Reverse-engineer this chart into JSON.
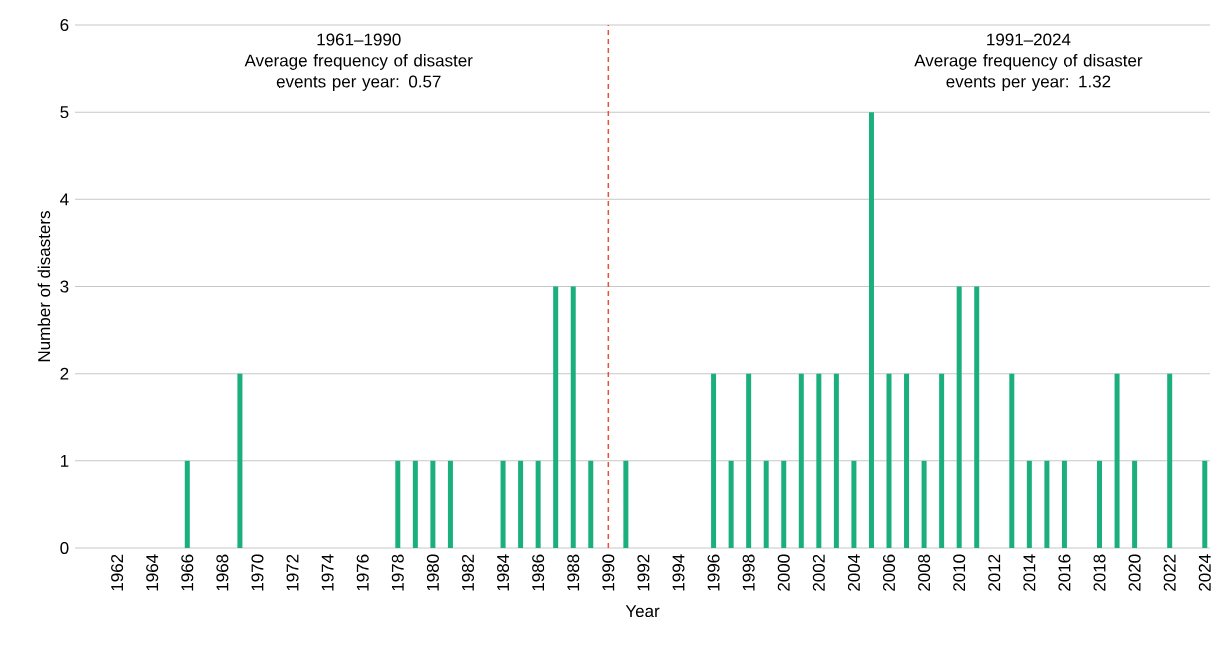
{
  "chart_data": {
    "type": "bar",
    "xlabel": "Year",
    "ylabel": "Number of disasters",
    "x": [
      1966,
      1969,
      1978,
      1979,
      1980,
      1981,
      1984,
      1985,
      1986,
      1987,
      1988,
      1989,
      1991,
      1996,
      1997,
      1998,
      1999,
      2000,
      2001,
      2002,
      2003,
      2004,
      2005,
      2006,
      2007,
      2008,
      2009,
      2010,
      2011,
      2013,
      2014,
      2015,
      2016,
      2018,
      2019,
      2020,
      2022,
      2024
    ],
    "values": [
      1,
      2,
      1,
      1,
      1,
      1,
      1,
      1,
      1,
      3,
      3,
      1,
      1,
      2,
      1,
      2,
      1,
      1,
      2,
      2,
      2,
      1,
      5,
      2,
      2,
      1,
      2,
      3,
      3,
      2,
      1,
      1,
      1,
      1,
      2,
      1,
      2,
      1
    ],
    "color": "#1aaf7d",
    "xlim": [
      1959.6,
      2024.3
    ],
    "xticks": [
      1962,
      1964,
      1966,
      1968,
      1970,
      1972,
      1974,
      1976,
      1978,
      1980,
      1982,
      1984,
      1986,
      1988,
      1990,
      1992,
      1994,
      1996,
      1998,
      2000,
      2002,
      2004,
      2006,
      2008,
      2010,
      2012,
      2014,
      2016,
      2018,
      2020,
      2022,
      2024
    ],
    "ylim": [
      0,
      6
    ],
    "yticks": [
      0,
      1,
      2,
      3,
      4,
      5,
      6
    ],
    "grid": "y",
    "ref_lines": [
      {
        "axis": "x",
        "value": 1990,
        "color": "#e8503a",
        "line_style": "dashed"
      }
    ],
    "annotations": [
      "1961–1990",
      "Average frequency of disaster events per year: 0.57",
      "1991–2024",
      "Average frequency of disaster events per year: 1.32"
    ]
  }
}
